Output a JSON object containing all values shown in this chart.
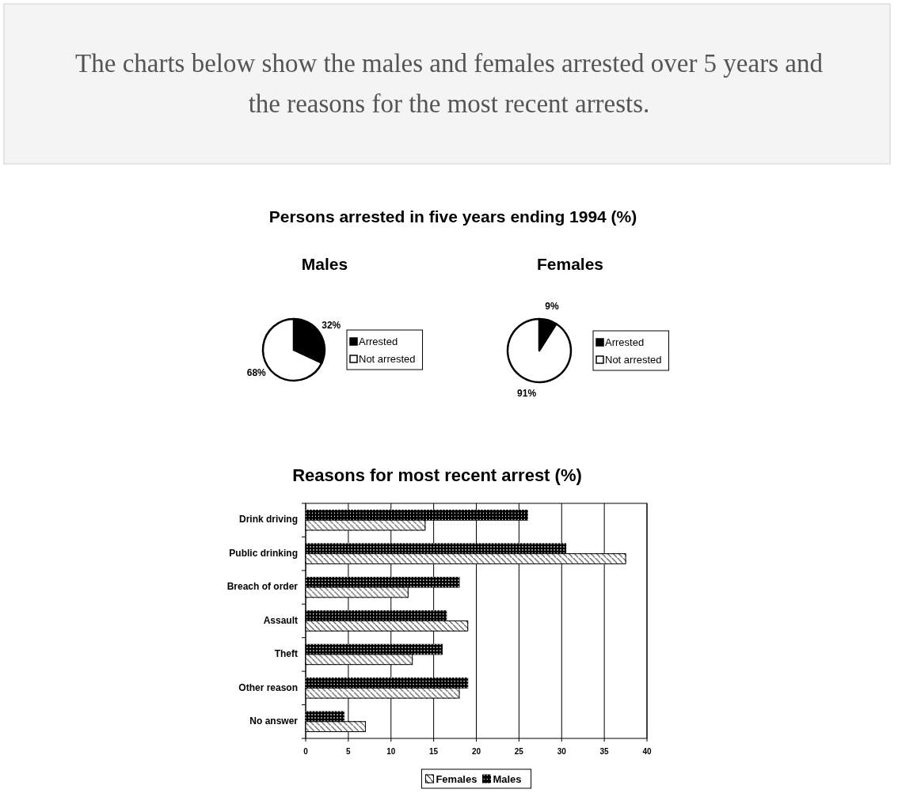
{
  "chart_data": [
    {
      "type": "pie",
      "annotations": [
        "The charts below show the males and females arrested over 5 years and the reasons for the most recent arrests."
      ],
      "title": "Persons arrested in five years ending 1994 (%)",
      "subtitle": "Males",
      "categories": [
        "Arrested",
        "Not arrested"
      ],
      "values": [
        32,
        68
      ],
      "colors": [
        "#000000",
        "#ffffff"
      ],
      "value_labels": [
        "32%",
        "68%"
      ],
      "legend": "right"
    },
    {
      "type": "pie",
      "subtitle": "Females",
      "categories": [
        "Arrested",
        "Not arrested"
      ],
      "values": [
        9,
        91
      ],
      "colors": [
        "#000000",
        "#ffffff"
      ],
      "value_labels": [
        "9%",
        "91%"
      ],
      "legend": "right"
    },
    {
      "type": "bar",
      "orientation": "horizontal",
      "title": "Reasons for most recent arrest (%)",
      "categories": [
        "Drink driving",
        "Public drinking",
        "Breach of order",
        "Assault",
        "Theft",
        "Other reason",
        "No answer"
      ],
      "series": [
        {
          "name": "Males",
          "color": "#000000",
          "values": [
            26,
            30.5,
            18,
            16.5,
            16,
            19,
            4.5
          ]
        },
        {
          "name": "Females",
          "color": "#ffffff",
          "values": [
            14,
            37.5,
            12,
            19,
            12.5,
            18,
            7
          ]
        }
      ],
      "xlim": [
        0,
        40
      ],
      "xticks": [
        0,
        5,
        10,
        15,
        20,
        25,
        30,
        35,
        40
      ],
      "grid": "x",
      "legend": "bottom"
    }
  ]
}
